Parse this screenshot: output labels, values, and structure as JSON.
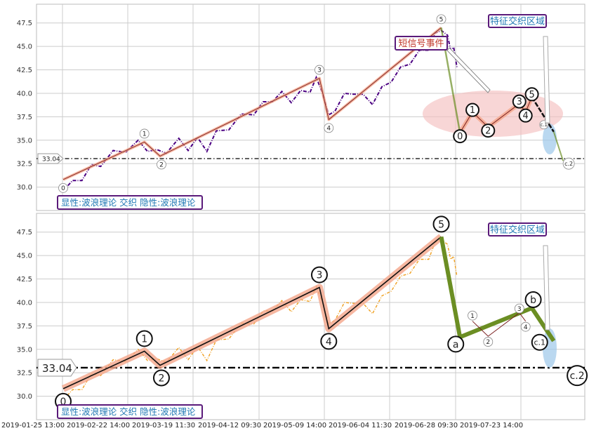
{
  "chart_data": [
    {
      "type": "line",
      "panel": "top",
      "x_ticks": [
        "2019-01-25 13:00",
        "2019-02-22 14:00",
        "2019-03-19 11:30",
        "2019-04-12 09:30",
        "2019-05-09 14:00",
        "2019-06-04 11:30",
        "2019-06-28 09:30",
        "2019-07-23 14:00"
      ],
      "y_ticks": [
        "30.0",
        "32.5",
        "35.0",
        "37.5",
        "40.0",
        "42.5",
        "45.0",
        "47.5"
      ],
      "ylim": [
        27.5,
        49.5
      ],
      "reference_line": {
        "value": 33.04,
        "label": "33.04"
      },
      "legend_text": "显性:波浪理论 交织 隐性:波浪理论",
      "zone_label": "特征交织区域",
      "callout_label": "短信号事件",
      "price_series": [
        [
          0,
          30.0
        ],
        [
          3,
          30.3
        ],
        [
          6,
          31.1
        ],
        [
          9,
          32.0
        ],
        [
          12,
          32.6
        ],
        [
          16,
          33.5
        ],
        [
          20,
          34.1
        ],
        [
          24,
          34.6
        ],
        [
          27,
          34.2
        ],
        [
          30,
          33.6
        ],
        [
          33,
          34.0
        ],
        [
          37,
          34.8
        ],
        [
          40,
          34.3
        ],
        [
          43,
          34.9
        ],
        [
          46,
          34.2
        ],
        [
          49,
          35.6
        ],
        [
          53,
          36.5
        ],
        [
          57,
          37.4
        ],
        [
          61,
          38.1
        ],
        [
          64,
          38.7
        ],
        [
          67,
          39.5
        ],
        [
          70,
          39.8
        ],
        [
          73,
          39.4
        ],
        [
          76,
          39.9
        ],
        [
          79,
          40.5
        ],
        [
          81,
          41.3
        ],
        [
          83,
          40.4
        ],
        [
          85,
          37.3
        ],
        [
          87,
          38.5
        ],
        [
          90,
          39.6
        ],
        [
          93,
          40.3
        ],
        [
          96,
          39.5
        ],
        [
          99,
          39.2
        ],
        [
          102,
          40.3
        ],
        [
          105,
          41.6
        ],
        [
          108,
          42.4
        ],
        [
          111,
          43.5
        ],
        [
          114,
          44.2
        ],
        [
          117,
          45.0
        ],
        [
          119,
          46.0
        ],
        [
          121,
          47.1
        ],
        [
          123,
          45.8
        ],
        [
          124,
          45.0
        ],
        [
          125,
          44.5
        ],
        [
          126,
          43.2
        ]
      ],
      "wave_points": [
        {
          "label": "0",
          "x": 0,
          "y": 30.8
        },
        {
          "label": "1",
          "x": 26,
          "y": 34.8
        },
        {
          "label": "2",
          "x": 31,
          "y": 33.3
        },
        {
          "label": "3",
          "x": 82,
          "y": 41.6
        },
        {
          "label": "4",
          "x": 85,
          "y": 37.2
        },
        {
          "label": "5",
          "x": 121,
          "y": 47.0
        }
      ],
      "minor_wave_points": [
        {
          "label": "0",
          "x": 127,
          "y": 35.8
        },
        {
          "label": "1",
          "x": 131,
          "y": 38.0
        },
        {
          "label": "2",
          "x": 136,
          "y": 36.4
        },
        {
          "label": "3",
          "x": 146,
          "y": 38.9
        },
        {
          "label": "4",
          "x": 148,
          "y": 38.0
        },
        {
          "label": "5",
          "x": 150,
          "y": 39.6
        }
      ],
      "correction_points": [
        {
          "label": "c.1",
          "x": 157,
          "y": 35.9
        },
        {
          "label": "c.2",
          "x": 160,
          "y": 32.8
        }
      ]
    },
    {
      "type": "line",
      "panel": "bottom",
      "x_ticks": [
        "2019-01-25 13:00",
        "2019-02-22 14:00",
        "2019-03-19 11:30",
        "2019-04-12 09:30",
        "2019-05-09 14:00",
        "2019-06-04 11:30",
        "2019-06-28 09:30",
        "2019-07-23 14:00"
      ],
      "y_ticks": [
        "30.0",
        "32.5",
        "35.0",
        "37.5",
        "40.0",
        "42.5",
        "45.0",
        "47.5"
      ],
      "ylim": [
        27.5,
        49.5
      ],
      "reference_line": {
        "value": 33.04,
        "label": "33.04"
      },
      "legend_text": "显性:波浪理论 交织 隐性:波浪理论",
      "zone_label": "特征交织区域",
      "wave_points": [
        {
          "label": "0",
          "x": 0,
          "y": 30.8
        },
        {
          "label": "1",
          "x": 26,
          "y": 34.8
        },
        {
          "label": "2",
          "x": 31,
          "y": 33.3
        },
        {
          "label": "3",
          "x": 82,
          "y": 41.6
        },
        {
          "label": "4",
          "x": 85,
          "y": 37.2
        },
        {
          "label": "5",
          "x": 121,
          "y": 47.0
        }
      ],
      "correction_points": [
        {
          "label": "a",
          "x": 127,
          "y": 36.3
        },
        {
          "label": "b",
          "x": 150,
          "y": 39.4
        },
        {
          "label": "c.1",
          "x": 157,
          "y": 35.9
        },
        {
          "label": "c.2",
          "x": 160,
          "y": 32.8
        }
      ],
      "minor_wave_points": [
        {
          "label": "1",
          "x": 131,
          "y": 38.0
        },
        {
          "label": "2",
          "x": 136,
          "y": 36.4
        },
        {
          "label": "3",
          "x": 146,
          "y": 38.9
        },
        {
          "label": "4",
          "x": 148,
          "y": 38.0
        }
      ]
    }
  ],
  "colors": {
    "top_series": "#4b0082",
    "bottom_series": "#f0a020",
    "wave_band": "#f4a58a",
    "correction_line": "#6b8e23",
    "zone_ellipse": "#f4c0c0",
    "label_border": "#5a1a7a",
    "label_text": "#1f78b4",
    "callout_text": "#c0392b"
  }
}
